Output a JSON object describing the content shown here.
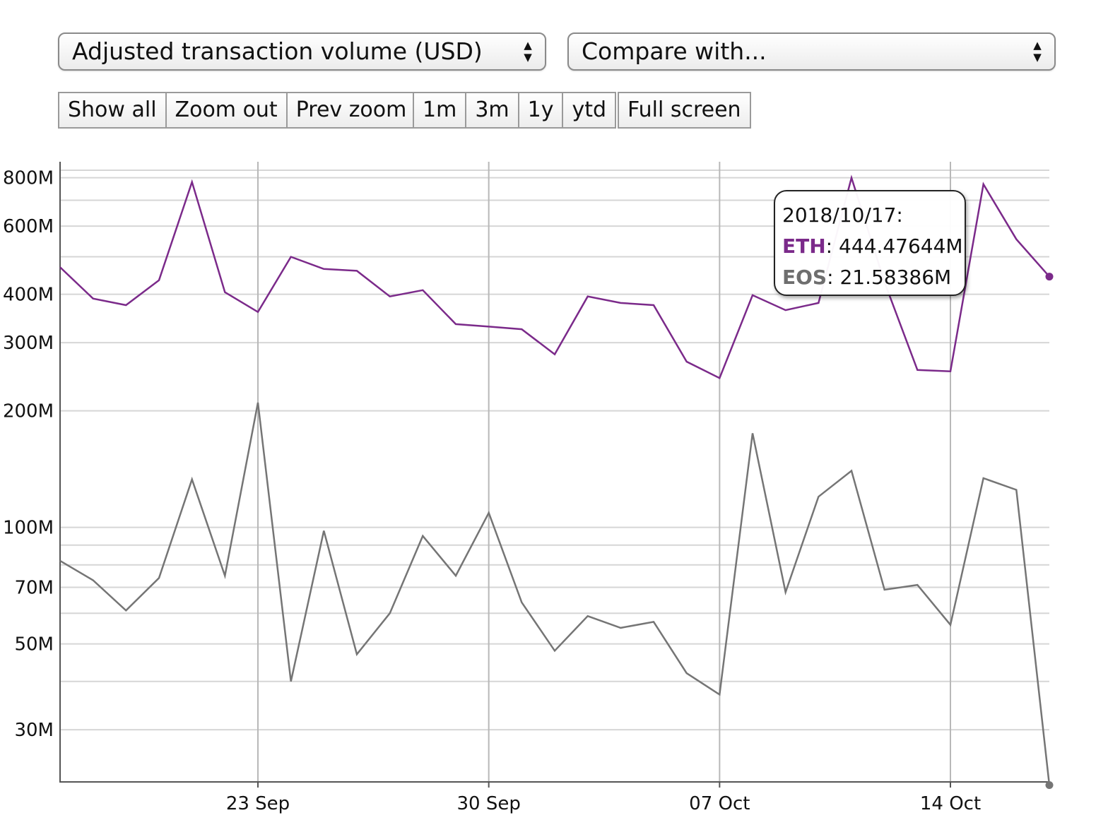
{
  "metric_select": {
    "label": "Adjusted transaction volume (USD)"
  },
  "compare_select": {
    "label": "Compare with..."
  },
  "buttons": {
    "show_all": "Show all",
    "zoom_out": "Zoom out",
    "prev_zoom": "Prev zoom",
    "range_1m": "1m",
    "range_3m": "3m",
    "range_1y": "1y",
    "range_ytd": "ytd",
    "full_screen": "Full screen"
  },
  "tooltip": {
    "date": "2018/10/17:",
    "eth_label": "ETH",
    "eth_value": ": 444.47644M",
    "eos_label": "EOS",
    "eos_value": ": 21.58386M"
  },
  "chart_data": {
    "type": "line",
    "y_scale": "log",
    "ylim": [
      22,
      880
    ],
    "y_tick_labels": [
      "30M",
      "50M",
      "70M",
      "100M",
      "200M",
      "300M",
      "400M",
      "600M",
      "800M"
    ],
    "y_tick_values": [
      30,
      50,
      70,
      100,
      200,
      300,
      400,
      600,
      800
    ],
    "minor_gridlines": [
      40,
      60,
      80,
      90,
      500,
      700
    ],
    "x_start": "2018-09-17",
    "x_end": "2018-10-17",
    "x_tick_labels": [
      "23 Sep",
      "30 Sep",
      "07 Oct",
      "14 Oct"
    ],
    "x_tick_dates": [
      "2018-09-23",
      "2018-09-30",
      "2018-10-07",
      "2018-10-14"
    ],
    "grid": true,
    "colors": {
      "ETH": "#7b2a8a",
      "EOS": "#757575"
    },
    "x": [
      "2018-09-17",
      "2018-09-18",
      "2018-09-19",
      "2018-09-20",
      "2018-09-21",
      "2018-09-22",
      "2018-09-23",
      "2018-09-24",
      "2018-09-25",
      "2018-09-26",
      "2018-09-27",
      "2018-09-28",
      "2018-09-29",
      "2018-09-30",
      "2018-10-01",
      "2018-10-02",
      "2018-10-03",
      "2018-10-04",
      "2018-10-05",
      "2018-10-06",
      "2018-10-07",
      "2018-10-08",
      "2018-10-09",
      "2018-10-10",
      "2018-10-11",
      "2018-10-12",
      "2018-10-13",
      "2018-10-14",
      "2018-10-15",
      "2018-10-16",
      "2018-10-17"
    ],
    "series": [
      {
        "name": "ETH",
        "values": [
          470,
          390,
          375,
          435,
          780,
          405,
          360,
          500,
          465,
          460,
          395,
          410,
          335,
          330,
          325,
          280,
          395,
          380,
          375,
          268,
          243,
          398,
          364,
          380,
          800,
          430,
          255,
          253,
          770,
          555,
          444.47644
        ]
      },
      {
        "name": "EOS",
        "values": [
          82,
          73,
          61,
          74,
          133,
          75,
          210,
          40,
          98,
          47,
          60,
          95,
          75,
          109,
          64,
          48,
          59,
          55,
          57,
          42,
          37,
          175,
          68,
          120,
          140,
          69,
          71,
          56,
          134,
          125,
          21.58386
        ]
      }
    ]
  }
}
